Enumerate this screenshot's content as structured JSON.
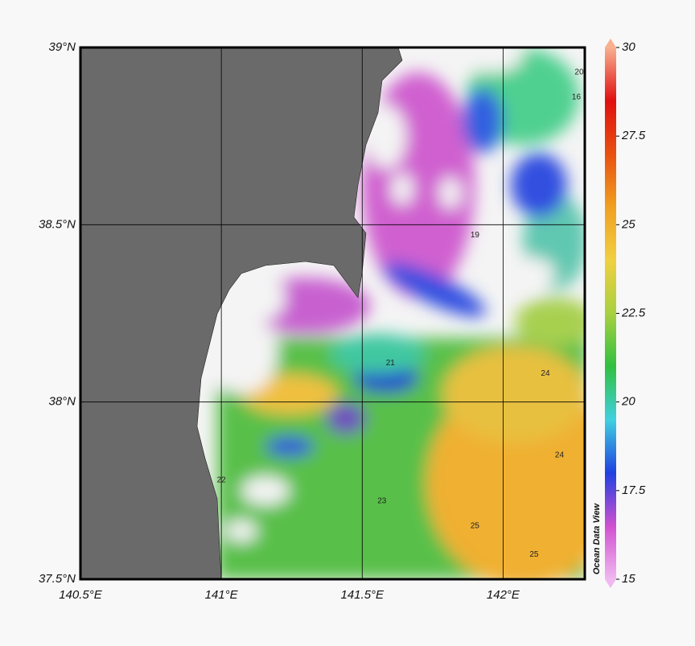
{
  "map": {
    "lonlim": [
      140.5,
      142.29
    ],
    "latlim": [
      37.5,
      39
    ],
    "lon_ticks": [
      {
        "value": 140.5,
        "label": "140.5°E"
      },
      {
        "value": 141,
        "label": "141°E"
      },
      {
        "value": 141.5,
        "label": "141.5°E"
      },
      {
        "value": 142,
        "label": "142°E"
      }
    ],
    "lat_ticks": [
      {
        "value": 37.5,
        "label": "37.5°N"
      },
      {
        "value": 38,
        "label": "38°N"
      },
      {
        "value": 38.5,
        "label": "38.5°N"
      },
      {
        "value": 39,
        "label": "39°N"
      }
    ],
    "contour_labels": [
      {
        "text": "20",
        "lon": 142.27,
        "lat": 38.93
      },
      {
        "text": "16",
        "lon": 142.26,
        "lat": 38.86
      },
      {
        "text": "19",
        "lon": 141.9,
        "lat": 38.47
      },
      {
        "text": "22",
        "lon": 141.0,
        "lat": 37.78
      },
      {
        "text": "23",
        "lon": 141.57,
        "lat": 37.72
      },
      {
        "text": "24",
        "lon": 142.15,
        "lat": 38.08
      },
      {
        "text": "25",
        "lon": 141.9,
        "lat": 37.65
      },
      {
        "text": "25",
        "lon": 142.11,
        "lat": 37.57
      },
      {
        "text": "24",
        "lon": 142.2,
        "lat": 37.85
      },
      {
        "text": "21",
        "lon": 141.6,
        "lat": 38.11
      }
    ]
  },
  "colorbar": {
    "lim": [
      15,
      30
    ],
    "ticks": [
      15,
      17.5,
      20,
      22.5,
      25,
      27.5,
      30
    ],
    "colors": [
      "#f0b8f0",
      "#d050d0",
      "#2040e0",
      "#40d0e0",
      "#30c040",
      "#a8d040",
      "#f0d040",
      "#f0a020",
      "#e85010",
      "#e01010",
      "#f8b090"
    ]
  },
  "watermark": "Ocean Data View"
}
